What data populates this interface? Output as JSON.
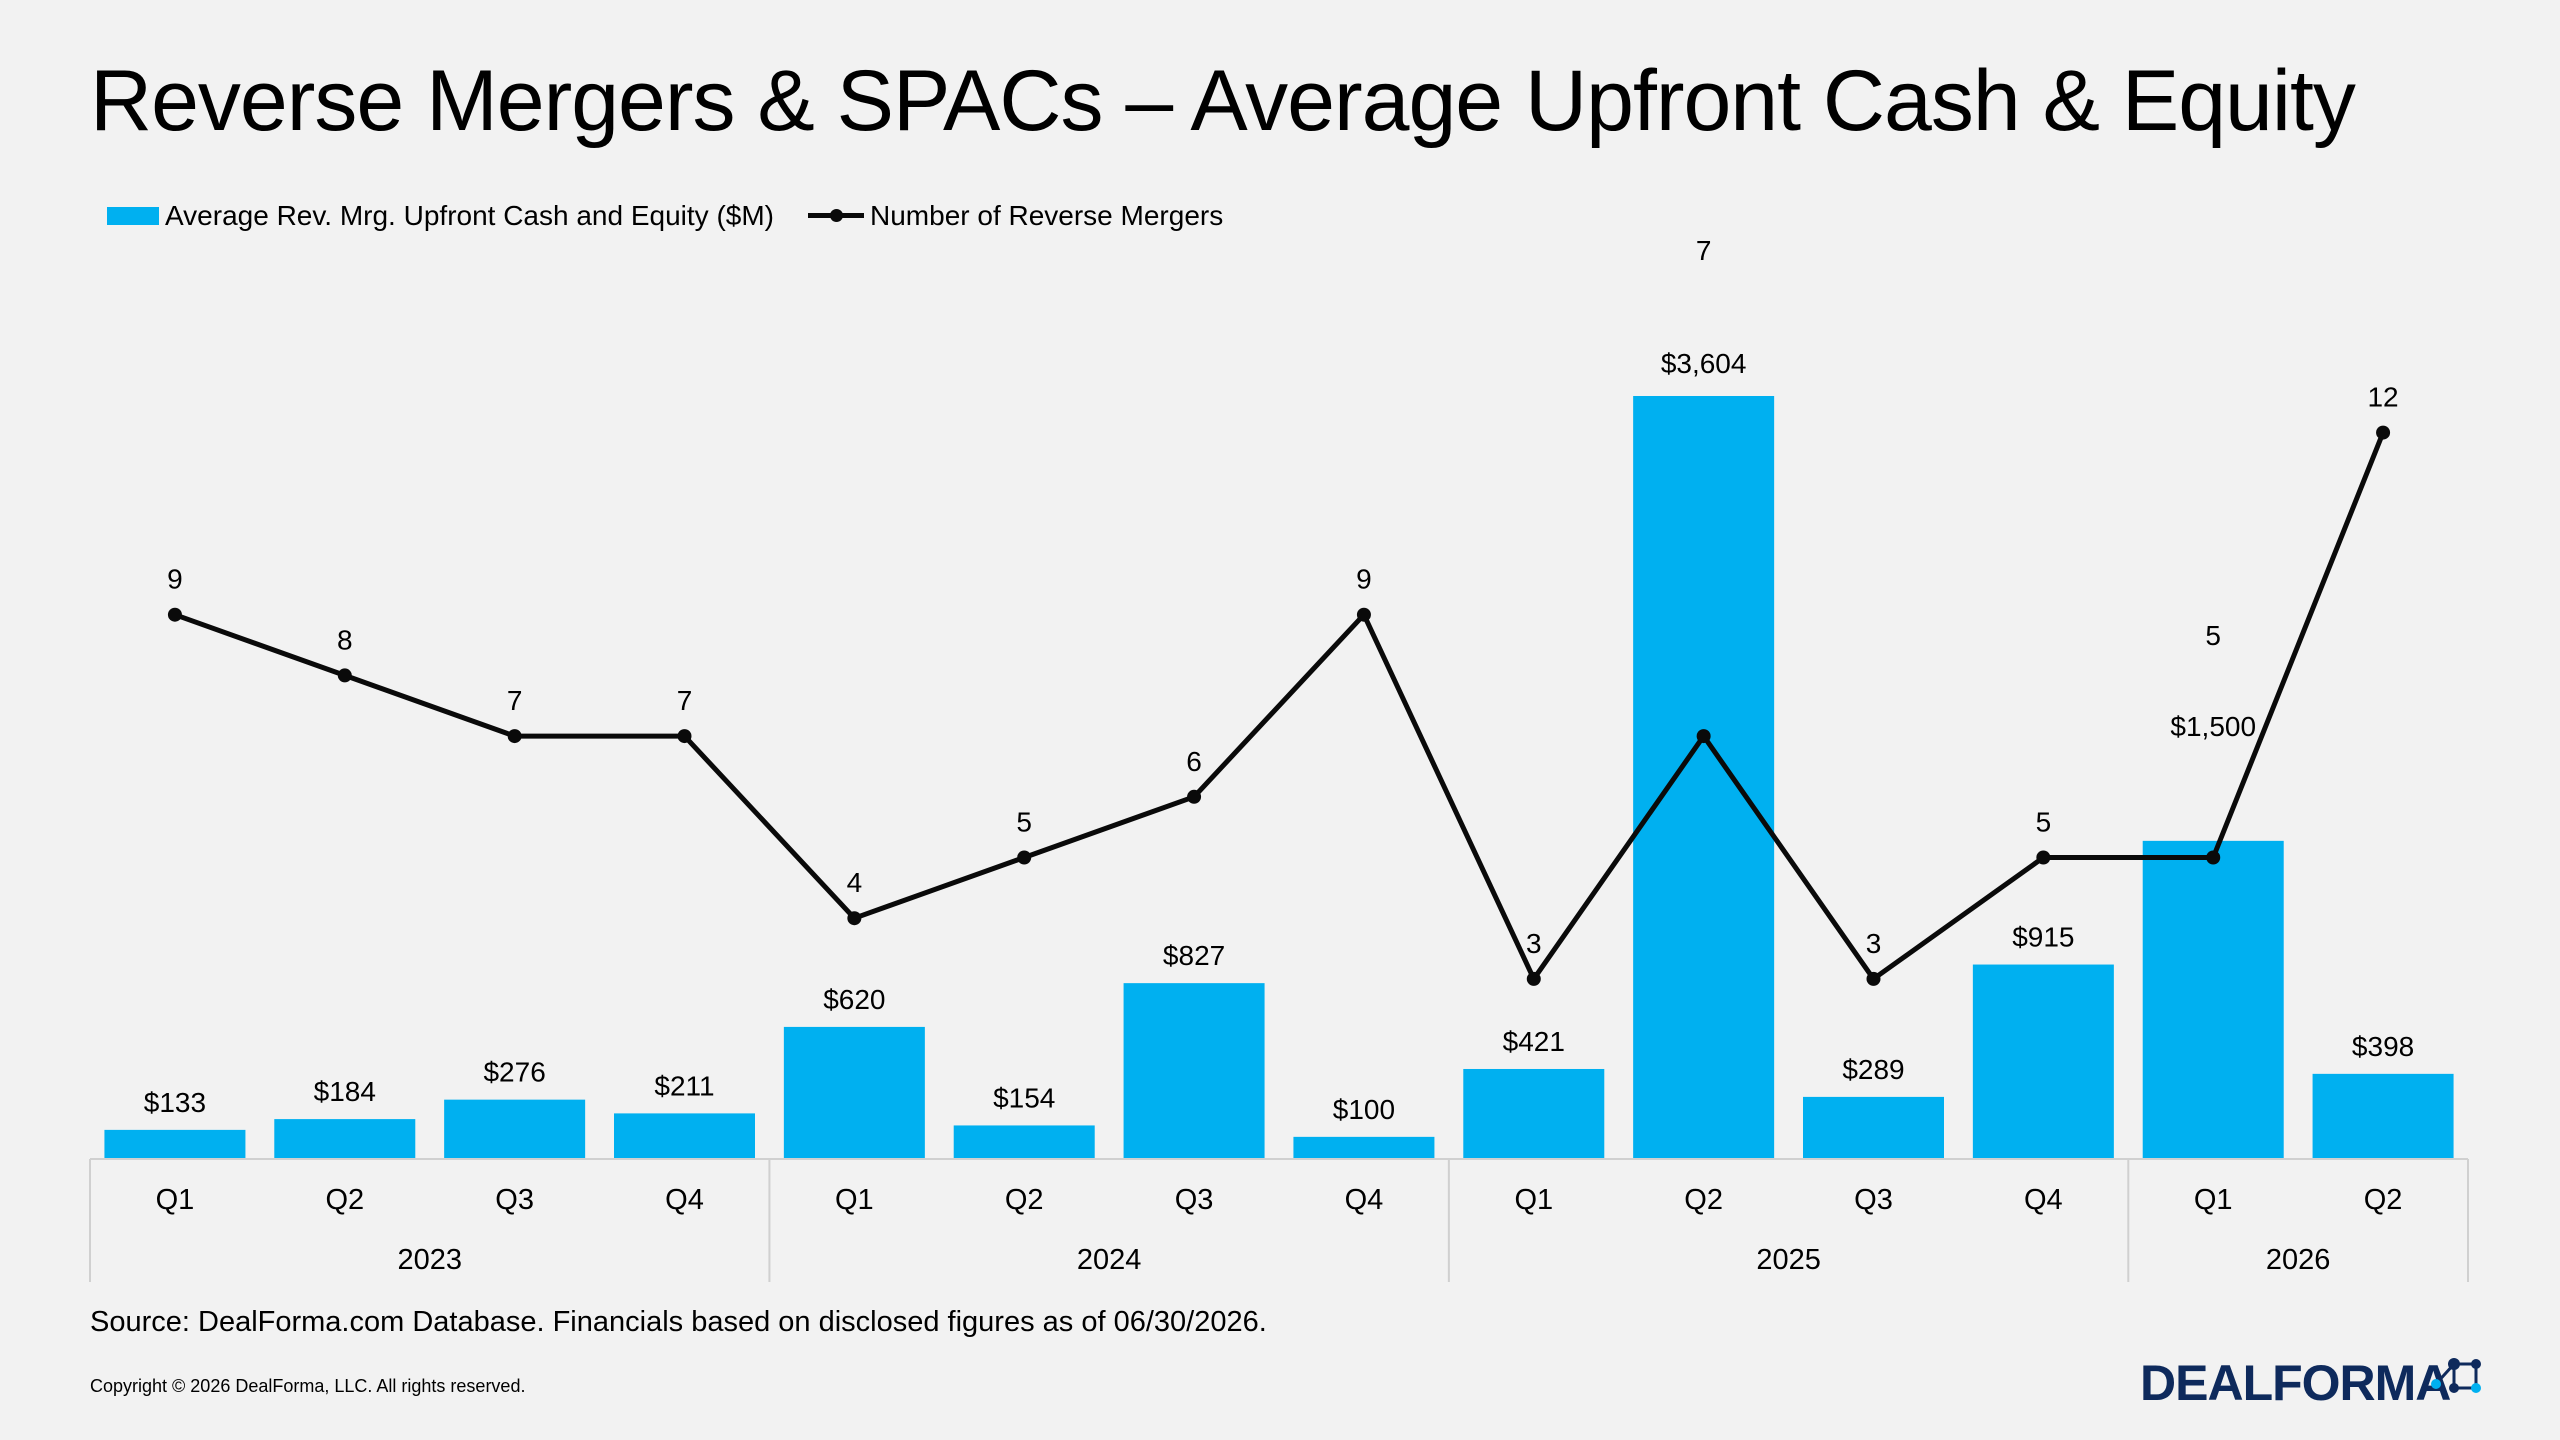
{
  "title": "Reverse Mergers & SPACs – Average Upfront Cash & Equity",
  "legend": {
    "bar_label": "Average Rev. Mrg. Upfront Cash and Equity ($M)",
    "line_label": "Number of Reverse Mergers"
  },
  "colors": {
    "bar": "#00b0f0",
    "line": "#0a0a0a",
    "background": "#f2f2f2",
    "logo": "#0e2a5c"
  },
  "chart_data": {
    "type": "bar",
    "quarters": [
      "Q1",
      "Q2",
      "Q3",
      "Q4",
      "Q1",
      "Q2",
      "Q3",
      "Q4",
      "Q1",
      "Q2",
      "Q3",
      "Q4",
      "Q1",
      "Q2"
    ],
    "years": [
      {
        "label": "2023",
        "quarters": 4
      },
      {
        "label": "2024",
        "quarters": 4
      },
      {
        "label": "2025",
        "quarters": 4
      },
      {
        "label": "2026",
        "quarters": 2
      }
    ],
    "series": [
      {
        "name": "Average Rev. Mrg. Upfront Cash and Equity ($M)",
        "type": "bar",
        "values": [
          133,
          184,
          276,
          211,
          620,
          154,
          827,
          100,
          421,
          3604,
          289,
          915,
          1500,
          398
        ],
        "labels": [
          "$133",
          "$184",
          "$276",
          "$211",
          "$620",
          "$154",
          "$827",
          "$100",
          "$421",
          "$3,604",
          "$289",
          "$915",
          "$1,500",
          "$398"
        ]
      },
      {
        "name": "Number of Reverse Mergers",
        "type": "line",
        "values": [
          9,
          8,
          7,
          7,
          4,
          5,
          6,
          9,
          3,
          7,
          3,
          5,
          5,
          12
        ],
        "labels": [
          "9",
          "8",
          "7",
          "7",
          "4",
          "5",
          "6",
          "9",
          "3",
          "7",
          "3",
          "5",
          "5",
          "12"
        ]
      }
    ],
    "legend_position": "top-left",
    "grid": false
  },
  "source": "Source: DealForma.com Database. Financials based on disclosed figures as of 06/30/2026.",
  "copyright": "Copyright © 2026 DealForma, LLC. All rights reserved.",
  "logo_text": "DEALFORMA"
}
